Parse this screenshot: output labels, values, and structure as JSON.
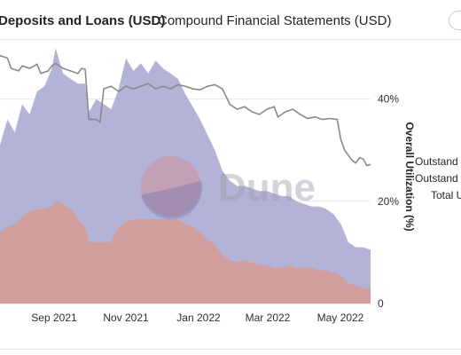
{
  "header": {
    "title": "Deposits and Loans (USD)",
    "subtitle": "Compound Financial Statements (USD)"
  },
  "watermark": {
    "text": "Dune"
  },
  "legend": {
    "items": [
      "Outstand",
      "Outstand",
      "Total U"
    ]
  },
  "colors": {
    "deposits_area": "#a5a6cf",
    "loans_area": "#d49b97",
    "utilization_line": "#8a8a8a"
  },
  "chart_data": {
    "type": "area",
    "title": "",
    "xlabel": "",
    "ylabel_right": "Overall Utilization (%)",
    "x_tick_labels": [
      "Sep 2021",
      "Nov 2021",
      "Jan 2022",
      "Mar 2022",
      "May 2022"
    ],
    "x_partial_left_label": "l",
    "y_right_ticks": [
      "0",
      "20%",
      "40%"
    ],
    "y_right_range": [
      0,
      0.5
    ],
    "grid": "horizontal",
    "series": [
      {
        "kind": "area",
        "values": [
          [
            0.0,
            0.62
          ],
          [
            0.02,
            0.72
          ],
          [
            0.04,
            0.67
          ],
          [
            0.06,
            0.78
          ],
          [
            0.08,
            0.74
          ],
          [
            0.1,
            0.83
          ],
          [
            0.12,
            0.85
          ],
          [
            0.14,
            0.92
          ],
          [
            0.15,
            1.0
          ],
          [
            0.17,
            0.9
          ],
          [
            0.19,
            0.88
          ],
          [
            0.21,
            0.86
          ],
          [
            0.23,
            0.86
          ],
          [
            0.24,
            0.75
          ],
          [
            0.26,
            0.8
          ],
          [
            0.28,
            0.78
          ],
          [
            0.3,
            0.76
          ],
          [
            0.32,
            0.84
          ],
          [
            0.34,
            0.96
          ],
          [
            0.36,
            0.91
          ],
          [
            0.38,
            0.94
          ],
          [
            0.4,
            0.9
          ],
          [
            0.42,
            0.95
          ],
          [
            0.44,
            0.92
          ],
          [
            0.46,
            0.9
          ],
          [
            0.48,
            0.88
          ],
          [
            0.5,
            0.82
          ],
          [
            0.52,
            0.77
          ],
          [
            0.54,
            0.72
          ],
          [
            0.56,
            0.66
          ],
          [
            0.58,
            0.6
          ],
          [
            0.6,
            0.52
          ],
          [
            0.62,
            0.48
          ],
          [
            0.64,
            0.46
          ],
          [
            0.66,
            0.46
          ],
          [
            0.68,
            0.45
          ],
          [
            0.7,
            0.44
          ],
          [
            0.72,
            0.44
          ],
          [
            0.74,
            0.43
          ],
          [
            0.76,
            0.42
          ],
          [
            0.78,
            0.42
          ],
          [
            0.8,
            0.4
          ],
          [
            0.82,
            0.39
          ],
          [
            0.84,
            0.38
          ],
          [
            0.86,
            0.38
          ],
          [
            0.88,
            0.37
          ],
          [
            0.9,
            0.35
          ],
          [
            0.92,
            0.31
          ],
          [
            0.94,
            0.24
          ],
          [
            0.96,
            0.22
          ],
          [
            0.98,
            0.22
          ],
          [
            1.0,
            0.21
          ]
        ]
      },
      {
        "kind": "area",
        "values": [
          [
            0.0,
            0.28
          ],
          [
            0.02,
            0.3
          ],
          [
            0.04,
            0.31
          ],
          [
            0.06,
            0.34
          ],
          [
            0.08,
            0.36
          ],
          [
            0.1,
            0.37
          ],
          [
            0.12,
            0.37
          ],
          [
            0.14,
            0.38
          ],
          [
            0.15,
            0.4
          ],
          [
            0.17,
            0.39
          ],
          [
            0.19,
            0.37
          ],
          [
            0.21,
            0.33
          ],
          [
            0.23,
            0.3
          ],
          [
            0.24,
            0.24
          ],
          [
            0.26,
            0.24
          ],
          [
            0.28,
            0.24
          ],
          [
            0.3,
            0.24
          ],
          [
            0.32,
            0.3
          ],
          [
            0.34,
            0.32
          ],
          [
            0.36,
            0.33
          ],
          [
            0.38,
            0.33
          ],
          [
            0.4,
            0.33
          ],
          [
            0.42,
            0.33
          ],
          [
            0.44,
            0.33
          ],
          [
            0.46,
            0.33
          ],
          [
            0.48,
            0.33
          ],
          [
            0.5,
            0.31
          ],
          [
            0.52,
            0.3
          ],
          [
            0.54,
            0.28
          ],
          [
            0.56,
            0.25
          ],
          [
            0.58,
            0.23
          ],
          [
            0.6,
            0.19
          ],
          [
            0.62,
            0.17
          ],
          [
            0.64,
            0.16
          ],
          [
            0.66,
            0.17
          ],
          [
            0.68,
            0.16
          ],
          [
            0.7,
            0.15
          ],
          [
            0.72,
            0.15
          ],
          [
            0.74,
            0.14
          ],
          [
            0.76,
            0.14
          ],
          [
            0.78,
            0.15
          ],
          [
            0.8,
            0.14
          ],
          [
            0.82,
            0.14
          ],
          [
            0.84,
            0.14
          ],
          [
            0.86,
            0.13
          ],
          [
            0.88,
            0.13
          ],
          [
            0.9,
            0.12
          ],
          [
            0.92,
            0.11
          ],
          [
            0.94,
            0.08
          ],
          [
            0.96,
            0.07
          ],
          [
            0.98,
            0.06
          ],
          [
            1.0,
            0.06
          ]
        ]
      },
      {
        "kind": "line",
        "axis": "right",
        "values": [
          [
            0.0,
            0.485
          ],
          [
            0.02,
            0.48
          ],
          [
            0.03,
            0.46
          ],
          [
            0.05,
            0.455
          ],
          [
            0.06,
            0.465
          ],
          [
            0.08,
            0.46
          ],
          [
            0.1,
            0.468
          ],
          [
            0.11,
            0.45
          ],
          [
            0.13,
            0.455
          ],
          [
            0.14,
            0.465
          ],
          [
            0.15,
            0.47
          ],
          [
            0.17,
            0.46
          ],
          [
            0.19,
            0.455
          ],
          [
            0.21,
            0.45
          ],
          [
            0.22,
            0.46
          ],
          [
            0.23,
            0.458
          ],
          [
            0.24,
            0.36
          ],
          [
            0.26,
            0.36
          ],
          [
            0.27,
            0.355
          ],
          [
            0.28,
            0.42
          ],
          [
            0.3,
            0.425
          ],
          [
            0.32,
            0.415
          ],
          [
            0.34,
            0.425
          ],
          [
            0.36,
            0.42
          ],
          [
            0.38,
            0.425
          ],
          [
            0.4,
            0.43
          ],
          [
            0.42,
            0.42
          ],
          [
            0.44,
            0.425
          ],
          [
            0.46,
            0.42
          ],
          [
            0.48,
            0.428
          ],
          [
            0.5,
            0.425
          ],
          [
            0.52,
            0.42
          ],
          [
            0.54,
            0.418
          ],
          [
            0.56,
            0.425
          ],
          [
            0.58,
            0.428
          ],
          [
            0.6,
            0.42
          ],
          [
            0.61,
            0.405
          ],
          [
            0.62,
            0.39
          ],
          [
            0.64,
            0.38
          ],
          [
            0.66,
            0.385
          ],
          [
            0.68,
            0.375
          ],
          [
            0.7,
            0.37
          ],
          [
            0.72,
            0.38
          ],
          [
            0.74,
            0.385
          ],
          [
            0.75,
            0.365
          ],
          [
            0.77,
            0.375
          ],
          [
            0.79,
            0.38
          ],
          [
            0.81,
            0.37
          ],
          [
            0.83,
            0.362
          ],
          [
            0.85,
            0.365
          ],
          [
            0.87,
            0.36
          ],
          [
            0.89,
            0.362
          ],
          [
            0.91,
            0.36
          ],
          [
            0.92,
            0.32
          ],
          [
            0.93,
            0.3
          ],
          [
            0.95,
            0.28
          ],
          [
            0.96,
            0.275
          ],
          [
            0.97,
            0.285
          ],
          [
            0.98,
            0.283
          ],
          [
            0.99,
            0.27
          ],
          [
            1.0,
            0.272
          ]
        ]
      }
    ]
  }
}
